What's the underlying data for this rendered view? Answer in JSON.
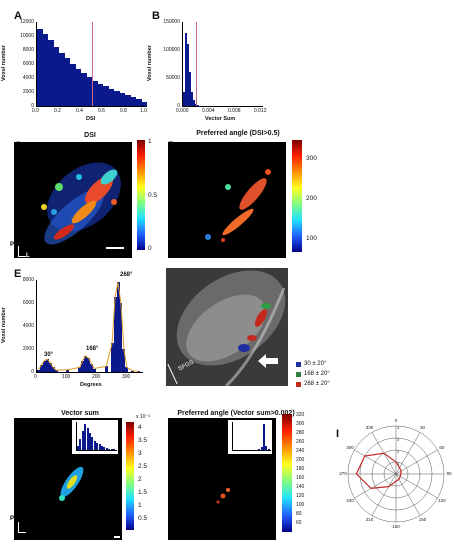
{
  "panels": {
    "A": {
      "label": "A",
      "xlabel": "DSI",
      "ylabel": "Voxel number",
      "yticks": [
        "12000",
        "10000",
        "8000",
        "6000",
        "4000",
        "2000",
        "0"
      ],
      "xticks": [
        "0.0",
        "0.2",
        "0.4",
        "0.6",
        "0.8",
        "1.0"
      ]
    },
    "B": {
      "label": "B",
      "xlabel": "Vector Sum",
      "ylabel": "Voxel number",
      "yticks": [
        "150000",
        "100000",
        "50000",
        "0"
      ],
      "xticks": [
        "0.000",
        "0.004",
        "0.008",
        "0.012"
      ]
    },
    "C": {
      "label": "C",
      "title": "DSI",
      "cbar_ticks": [
        "1",
        "0.5",
        "0"
      ],
      "orient": {
        "p": "P",
        "l": "L"
      }
    },
    "D": {
      "label": "D",
      "title": "Preferred angle (DSI>0.5)",
      "cbar_ticks": [
        "300",
        "200",
        "100"
      ]
    },
    "E": {
      "label": "E",
      "xlabel": "Degrees",
      "ylabel": "Voxel number",
      "yticks": [
        "8000",
        "6000",
        "4000",
        "2000",
        "0"
      ],
      "xticks": [
        "0",
        "100",
        "200",
        "300"
      ],
      "peaks": [
        "30°",
        "168°",
        "268°"
      ]
    },
    "F": {
      "label": "F",
      "scale_text": "SFGS",
      "legend": [
        {
          "text": "30 ± 20°",
          "color": "#1f2f9f"
        },
        {
          "text": "168 ± 20°",
          "color": "#2f7f3f"
        },
        {
          "text": "268 ± 20°",
          "color": "#c4281c"
        }
      ]
    },
    "G": {
      "label": "G",
      "title": "Vector sum",
      "exp": "x 10⁻³",
      "cbar_ticks": [
        "4",
        "3.5",
        "3",
        "2.5",
        "2",
        "1.5",
        "1",
        "0.5"
      ],
      "orient": {
        "p": "P",
        "l": "L"
      }
    },
    "H": {
      "label": "H",
      "title": "Preferred angle (Vector sum>0.002)",
      "cbar_ticks": [
        "320",
        "300",
        "280",
        "260",
        "240",
        "200",
        "180",
        "160",
        "140",
        "120",
        "100",
        "80",
        "60"
      ]
    },
    "I": {
      "label": "I",
      "angles": [
        "0",
        "30",
        "60",
        "90",
        "120",
        "150",
        "180",
        "210",
        "240",
        "270",
        "300",
        "330"
      ],
      "rings": [
        "4",
        "3",
        "2",
        "1"
      ]
    }
  },
  "colors": {
    "hist_blue": "#0a1a8c",
    "dsi_line": "#c46a8a",
    "fit": "#e09a2a",
    "polar": "#c0282a"
  },
  "chart_data": [
    {
      "type": "bar",
      "panel": "A",
      "title": "",
      "xlabel": "DSI",
      "ylabel": "Voxel number",
      "xlim": [
        0,
        1
      ],
      "ylim": [
        0,
        12000
      ],
      "x": [
        0.0,
        0.05,
        0.1,
        0.15,
        0.2,
        0.25,
        0.3,
        0.35,
        0.4,
        0.45,
        0.5,
        0.55,
        0.6,
        0.65,
        0.7,
        0.75,
        0.8,
        0.85,
        0.9,
        0.95
      ],
      "values": [
        11000,
        10300,
        9400,
        8500,
        7600,
        6800,
        6000,
        5300,
        4700,
        4100,
        3600,
        3200,
        2800,
        2500,
        2200,
        1900,
        1600,
        1300,
        1000,
        600
      ]
    },
    {
      "type": "bar",
      "panel": "B",
      "title": "",
      "xlabel": "Vector Sum",
      "ylabel": "Voxel number",
      "xlim": [
        0,
        0.012
      ],
      "ylim": [
        0,
        150000
      ],
      "x": [
        0.0,
        0.0003,
        0.0006,
        0.0009,
        0.0012,
        0.0015,
        0.0018,
        0.0021,
        0.0024
      ],
      "values": [
        25000,
        130000,
        110000,
        60000,
        25000,
        10000,
        4000,
        1500,
        500
      ]
    },
    {
      "type": "bar",
      "panel": "E",
      "title": "",
      "xlabel": "Degrees",
      "ylabel": "Voxel number",
      "xlim": [
        0,
        360
      ],
      "ylim": [
        0,
        8000
      ],
      "x": [
        0,
        10,
        20,
        30,
        40,
        50,
        60,
        100,
        140,
        150,
        160,
        170,
        180,
        190,
        230,
        250,
        260,
        270,
        280,
        290,
        300,
        320,
        340
      ],
      "values": [
        200,
        600,
        1000,
        1100,
        800,
        400,
        150,
        200,
        400,
        1000,
        1400,
        1200,
        700,
        300,
        500,
        2500,
        6500,
        7800,
        6000,
        2000,
        400,
        100,
        50
      ]
    },
    {
      "type": "line",
      "panel": "I",
      "title": "",
      "angles": [
        0,
        30,
        60,
        90,
        120,
        150,
        180,
        210,
        240,
        270,
        300,
        330
      ],
      "values": [
        1.0,
        0.6,
        0.5,
        0.4,
        0.4,
        0.5,
        0.6,
        1.2,
        2.4,
        3.3,
        3.0,
        2.0
      ]
    }
  ]
}
